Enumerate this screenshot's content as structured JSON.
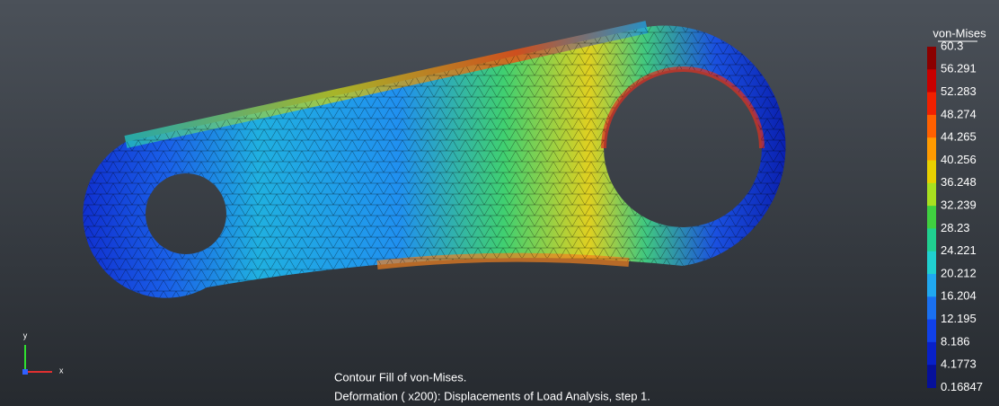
{
  "legend": {
    "title": "von-Mises",
    "ticks": [
      60.3,
      56.291,
      52.283,
      48.274,
      44.265,
      40.256,
      36.248,
      32.239,
      28.23,
      24.221,
      20.212,
      16.204,
      12.195,
      8.186,
      4.1773,
      0.16847
    ]
  },
  "axes": {
    "y": "y",
    "x": "x"
  },
  "caption": {
    "line1": "Contour Fill of von-Mises.",
    "line2": "Deformation ( x200): Displacements of Load Analysis, step 1."
  }
}
